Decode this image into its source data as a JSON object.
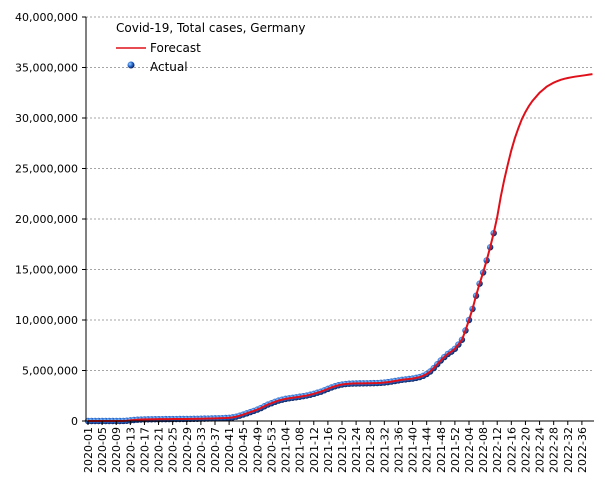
{
  "chart_data": {
    "type": "line",
    "title": "Covid-19, Total cases, Germany",
    "categories": [
      "2020-01",
      null,
      null,
      null,
      "2020-05",
      null,
      null,
      null,
      "2020-09",
      null,
      null,
      null,
      "2020-13",
      null,
      null,
      null,
      "2020-17",
      null,
      null,
      null,
      "2020-21",
      null,
      null,
      null,
      "2020-25",
      null,
      null,
      null,
      "2020-29",
      null,
      null,
      null,
      "2020-33",
      null,
      null,
      null,
      "2020-37",
      null,
      null,
      null,
      "2020-41",
      null,
      null,
      null,
      "2020-45",
      null,
      null,
      null,
      "2020-49",
      null,
      null,
      null,
      "2020-53",
      null,
      null,
      null,
      "2021-04",
      null,
      null,
      null,
      "2021-08",
      null,
      null,
      null,
      "2021-12",
      null,
      null,
      null,
      "2021-16",
      null,
      null,
      null,
      "2021-20",
      null,
      null,
      null,
      "2021-24",
      null,
      null,
      null,
      "2021-28",
      null,
      null,
      null,
      "2021-32",
      null,
      null,
      null,
      "2021-36",
      null,
      null,
      null,
      "2021-40",
      null,
      null,
      null,
      "2021-44",
      null,
      null,
      null,
      "2021-48",
      null,
      null,
      null,
      "2021-52",
      null,
      null,
      null,
      "2022-04",
      null,
      null,
      null,
      "2022-08",
      null,
      null,
      null,
      "2022-12",
      null,
      null,
      null,
      "2022-16",
      null,
      null,
      null,
      "2022-20",
      null,
      null,
      null,
      "2022-24",
      null,
      null,
      null,
      "2022-28",
      null,
      null,
      null,
      "2022-32",
      null,
      null,
      null,
      "2022-36",
      null,
      null,
      null
    ],
    "series": [
      {
        "name": "Forecast",
        "type": "line",
        "color": "#e0101a",
        "values": [
          0,
          0,
          0,
          0,
          0,
          0,
          0,
          0,
          0,
          1000,
          5000,
          24000,
          62000,
          100000,
          130000,
          145000,
          158000,
          165000,
          171000,
          176000,
          180000,
          183000,
          186000,
          189000,
          193000,
          196000,
          199000,
          201000,
          204000,
          208000,
          213000,
          220000,
          228000,
          236000,
          244000,
          252000,
          260000,
          270000,
          283000,
          297000,
          320000,
          360000,
          430000,
          530000,
          640000,
          760000,
          880000,
          1000000,
          1130000,
          1280000,
          1460000,
          1630000,
          1760000,
          1900000,
          2020000,
          2110000,
          2190000,
          2250000,
          2300000,
          2350000,
          2400000,
          2460000,
          2520000,
          2600000,
          2690000,
          2800000,
          2900000,
          3040000,
          3180000,
          3320000,
          3440000,
          3540000,
          3610000,
          3660000,
          3690000,
          3710000,
          3720000,
          3725000,
          3730000,
          3735000,
          3740000,
          3750000,
          3760000,
          3780000,
          3810000,
          3850000,
          3900000,
          3960000,
          4020000,
          4080000,
          4120000,
          4160000,
          4200000,
          4270000,
          4350000,
          4470000,
          4650000,
          4900000,
          5240000,
          5620000,
          5990000,
          6330000,
          6640000,
          6870000,
          7150000,
          7570000,
          8040000,
          8960000,
          10000000,
          11100000,
          12400000,
          13600000,
          14700000,
          15900000,
          17200000,
          18600000,
          20200000,
          22200000,
          23900000,
          25400000,
          26800000,
          28000000,
          29000000,
          29900000,
          30600000,
          31200000,
          31700000,
          32100000,
          32500000,
          32800000,
          33100000,
          33300000,
          33500000,
          33650000,
          33780000,
          33880000,
          33960000,
          34030000,
          34090000,
          34140000,
          34190000,
          34240000,
          34290000,
          34340000
        ]
      },
      {
        "name": "Actual",
        "type": "scatter",
        "color": "#2b6fd6",
        "values": [
          0,
          0,
          0,
          0,
          0,
          0,
          0,
          0,
          0,
          1000,
          5000,
          24000,
          62000,
          100000,
          130000,
          145000,
          158000,
          165000,
          171000,
          176000,
          180000,
          183000,
          186000,
          189000,
          193000,
          196000,
          199000,
          201000,
          204000,
          208000,
          213000,
          220000,
          228000,
          236000,
          244000,
          252000,
          260000,
          270000,
          283000,
          297000,
          320000,
          360000,
          430000,
          530000,
          640000,
          760000,
          880000,
          1000000,
          1130000,
          1280000,
          1460000,
          1630000,
          1760000,
          1900000,
          2020000,
          2110000,
          2190000,
          2250000,
          2300000,
          2350000,
          2400000,
          2460000,
          2520000,
          2600000,
          2690000,
          2800000,
          2900000,
          3040000,
          3180000,
          3320000,
          3440000,
          3540000,
          3610000,
          3660000,
          3690000,
          3710000,
          3720000,
          3725000,
          3730000,
          3735000,
          3740000,
          3750000,
          3760000,
          3780000,
          3810000,
          3850000,
          3900000,
          3960000,
          4020000,
          4080000,
          4120000,
          4160000,
          4200000,
          4270000,
          4350000,
          4470000,
          4650000,
          4900000,
          5240000,
          5620000,
          5990000,
          6330000,
          6640000,
          6870000,
          7150000,
          7570000,
          8040000,
          8960000,
          10000000,
          11100000,
          12400000,
          13600000,
          14700000,
          15900000,
          17200000,
          18600000,
          null,
          null,
          null,
          null,
          null,
          null,
          null,
          null,
          null,
          null,
          null,
          null,
          null,
          null,
          null,
          null,
          null,
          null,
          null,
          null,
          null,
          null,
          null,
          null,
          null,
          null,
          null,
          null
        ]
      }
    ],
    "ylim": [
      0,
      40000000
    ],
    "yticks": [
      {
        "value": 0,
        "label": "0"
      },
      {
        "value": 5000000,
        "label": "5,000,000"
      },
      {
        "value": 10000000,
        "label": "10,000,000"
      },
      {
        "value": 15000000,
        "label": "15,000,000"
      },
      {
        "value": 20000000,
        "label": "20,000,000"
      },
      {
        "value": 25000000,
        "label": "25,000,000"
      },
      {
        "value": 30000000,
        "label": "30,000,000"
      },
      {
        "value": 35000000,
        "label": "35,000,000"
      },
      {
        "value": 40000000,
        "label": "40,000,000"
      }
    ],
    "grid": true,
    "legend": "upper-left"
  }
}
